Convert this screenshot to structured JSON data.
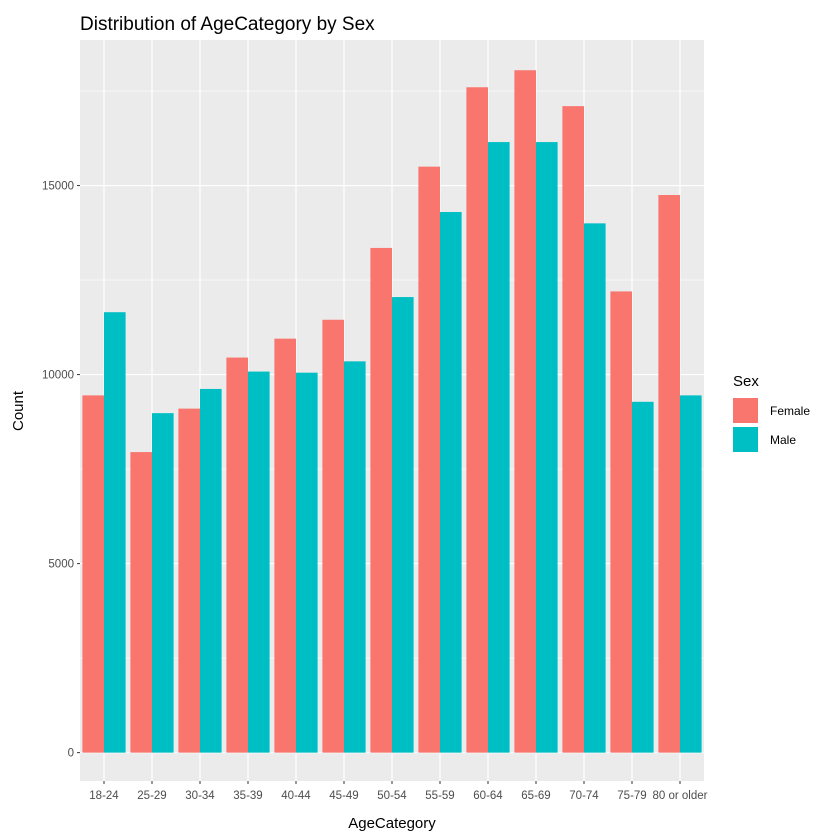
{
  "chart_data": {
    "type": "bar",
    "title": "Distribution of AgeCategory by Sex",
    "xlabel": "AgeCategory",
    "ylabel": "Count",
    "categories": [
      "18-24",
      "25-29",
      "30-34",
      "35-39",
      "40-44",
      "45-49",
      "50-54",
      "55-59",
      "60-64",
      "65-69",
      "70-74",
      "75-79",
      "80 or older"
    ],
    "series": [
      {
        "name": "Female",
        "color": "#F8766D",
        "values": [
          9450,
          7950,
          9100,
          10450,
          10950,
          11450,
          13350,
          15500,
          17600,
          18050,
          17100,
          12200,
          14750
        ]
      },
      {
        "name": "Male",
        "color": "#00BFC4",
        "values": [
          11650,
          8980,
          9620,
          10080,
          10050,
          10350,
          12050,
          14300,
          16150,
          16150,
          14000,
          9280,
          9450
        ]
      }
    ],
    "ylim": [
      -750,
      18850
    ],
    "yticks": [
      0,
      5000,
      10000,
      15000
    ],
    "ytick_labels": [
      "0",
      "5000",
      "10000",
      "15000"
    ],
    "legend": {
      "title": "Sex",
      "position": "right"
    },
    "grid": true,
    "panel_background": "#EBEBEB"
  }
}
